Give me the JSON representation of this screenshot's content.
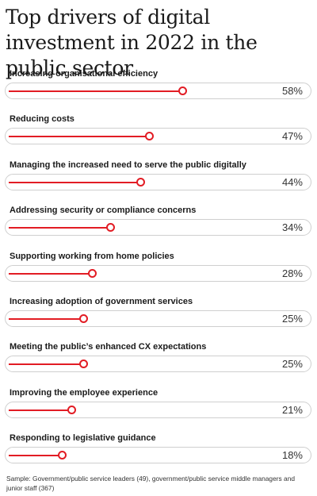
{
  "title": "Top drivers of digital investment in 2022 in the public sector",
  "footnote": "Sample: Government/public service leaders (49), government/public service middle managers and junior staff (367)",
  "colors": {
    "accent": "#e21c24",
    "track_border": "#cfcfcf"
  },
  "chart_data": {
    "type": "bar",
    "orientation": "horizontal",
    "title": "Top drivers of digital investment in 2022 in the public sector",
    "xlim": [
      0,
      100
    ],
    "grid": false,
    "categories": [
      "Increasing organisational efficiency",
      "Reducing costs",
      "Managing the increased need to serve the public digitally",
      "Addressing security or compliance concerns",
      "Supporting working from home policies",
      "Increasing adoption of government services",
      "Meeting the public’s enhanced CX expectations",
      "Improving the employee experience",
      "Responding to legislative guidance"
    ],
    "values": [
      58,
      47,
      44,
      34,
      28,
      25,
      25,
      21,
      18
    ],
    "value_labels": [
      "58%",
      "47%",
      "44%",
      "34%",
      "28%",
      "25%",
      "25%",
      "21%",
      "18%"
    ]
  }
}
